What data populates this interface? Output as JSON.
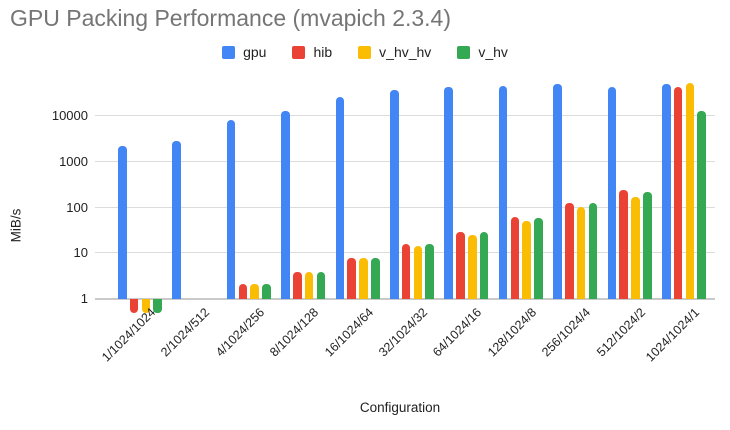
{
  "colors": {
    "title": "#757575",
    "text": "#222222",
    "gridline": "#dcdcdc",
    "axis_line": "#c9c9c9",
    "background": "#ffffff"
  },
  "chart_data": {
    "type": "bar",
    "title": "GPU Packing Performance (mvapich 2.3.4)",
    "xlabel": "Configuration",
    "ylabel": "MiB/s",
    "y_scale": "log",
    "y_ticks": [
      1,
      10,
      100,
      1000,
      10000
    ],
    "ylim": [
      0.4,
      100000
    ],
    "grid": true,
    "legend_position": "top",
    "categories": [
      "1/1024/1024",
      "2/1024/512",
      "4/1024/256",
      "8/1024/128",
      "16/1024/64",
      "32/1024/32",
      "64/1024/16",
      "128/1024/8",
      "256/1024/4",
      "512/1024/2",
      "1024/1024/1"
    ],
    "series": [
      {
        "name": "gpu",
        "color": "#4285F4",
        "values": [
          2100,
          2700,
          8100,
          12500,
          25000,
          37000,
          43000,
          45000,
          50000,
          43000,
          49000
        ]
      },
      {
        "name": "hib",
        "color": "#EA4335",
        "values": [
          0.5,
          null,
          2,
          3.8,
          7.5,
          15,
          28,
          60,
          120,
          230,
          42000
        ]
      },
      {
        "name": "v_hv_hv",
        "color": "#FBBC04",
        "values": [
          0.5,
          null,
          2,
          3.7,
          7.4,
          13.5,
          24,
          48,
          98,
          160,
          51000
        ]
      },
      {
        "name": "v_hv",
        "color": "#34A853",
        "values": [
          0.5,
          null,
          2,
          3.8,
          7.6,
          15,
          28,
          58,
          120,
          215,
          12500
        ]
      }
    ]
  }
}
